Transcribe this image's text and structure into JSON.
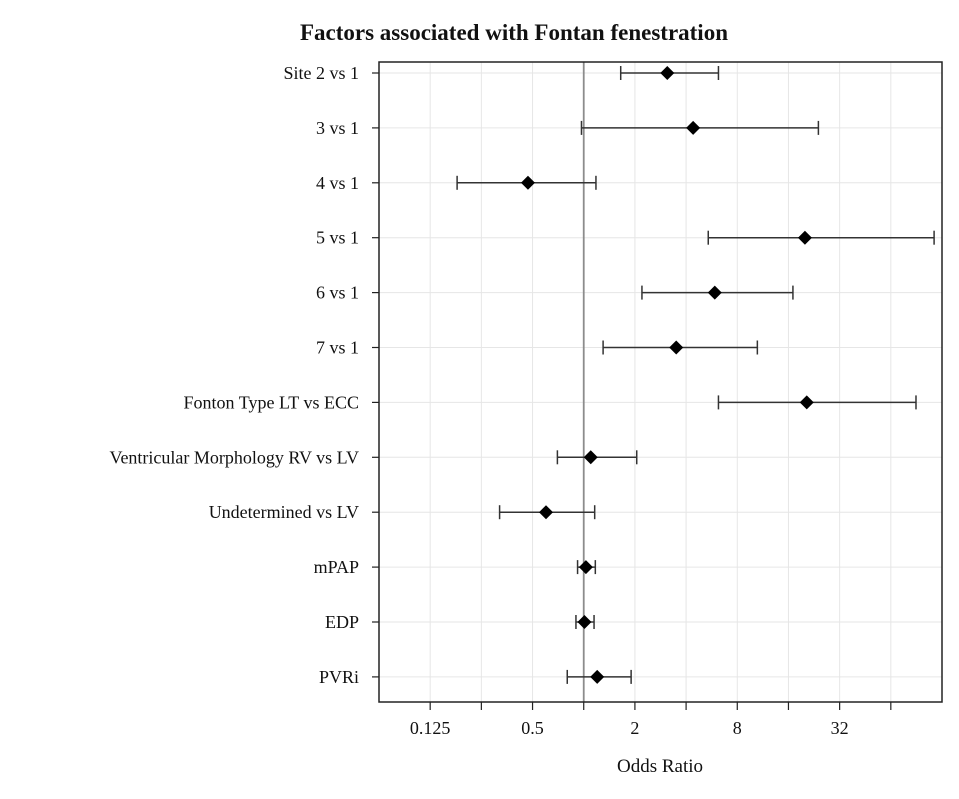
{
  "chart_data": {
    "type": "forest",
    "title": "Factors associated with Fontan fenestration",
    "xlabel": "Odds Ratio",
    "x_scale": "log2",
    "xlim": [
      0.0625,
      128
    ],
    "x_ticks": [
      0.125,
      0.5,
      2,
      8,
      32
    ],
    "x_tick_labels": [
      "0.125",
      "0.5",
      "2",
      "8",
      "32"
    ],
    "reference_line": 1,
    "grid": true,
    "rows": [
      {
        "label": "Site 2 vs 1",
        "or": 3.1,
        "lower": 1.65,
        "upper": 6.2
      },
      {
        "label": "3 vs 1",
        "or": 4.4,
        "lower": 0.97,
        "upper": 24
      },
      {
        "label": "4 vs 1",
        "or": 0.47,
        "lower": 0.18,
        "upper": 1.18
      },
      {
        "label": "5 vs 1",
        "or": 20,
        "lower": 5.4,
        "upper": 115
      },
      {
        "label": "6 vs 1",
        "or": 5.9,
        "lower": 2.2,
        "upper": 17
      },
      {
        "label": "7 vs 1",
        "or": 3.5,
        "lower": 1.3,
        "upper": 10.5
      },
      {
        "label": "Fonton Type LT vs ECC",
        "or": 20.5,
        "lower": 6.2,
        "upper": 90
      },
      {
        "label": "Ventricular Morphology RV vs LV",
        "or": 1.1,
        "lower": 0.7,
        "upper": 2.05
      },
      {
        "label": "Undetermined vs LV",
        "or": 0.6,
        "lower": 0.32,
        "upper": 1.16
      },
      {
        "label": "mPAP",
        "or": 1.03,
        "lower": 0.92,
        "upper": 1.17
      },
      {
        "label": "EDP",
        "or": 1.01,
        "lower": 0.9,
        "upper": 1.15
      },
      {
        "label": "PVRi",
        "or": 1.2,
        "lower": 0.8,
        "upper": 1.9
      }
    ]
  }
}
